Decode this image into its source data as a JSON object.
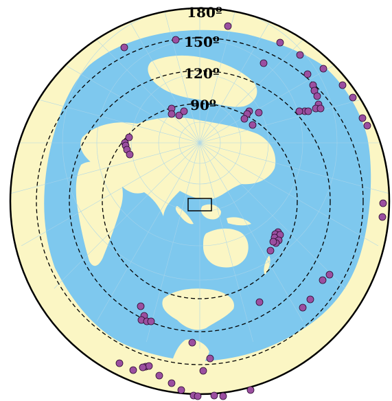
{
  "map": {
    "projection": "azimuthal-equidistant",
    "colors": {
      "ocean": "#7ec8ee",
      "land": "#fbf6c4",
      "graticule": "#a8d4ea",
      "coast": "#c7e6f5",
      "rings": "#000000",
      "events": "#9b4fa0",
      "event_outline": "#2a0a2e",
      "border": "#000000"
    },
    "distance_rings_deg": [
      90,
      120,
      150,
      180
    ],
    "ring_labels": [
      "90º",
      "120º",
      "150º",
      "180º"
    ],
    "station_box": {
      "symbol": "rectangle"
    },
    "event_count": 64
  }
}
